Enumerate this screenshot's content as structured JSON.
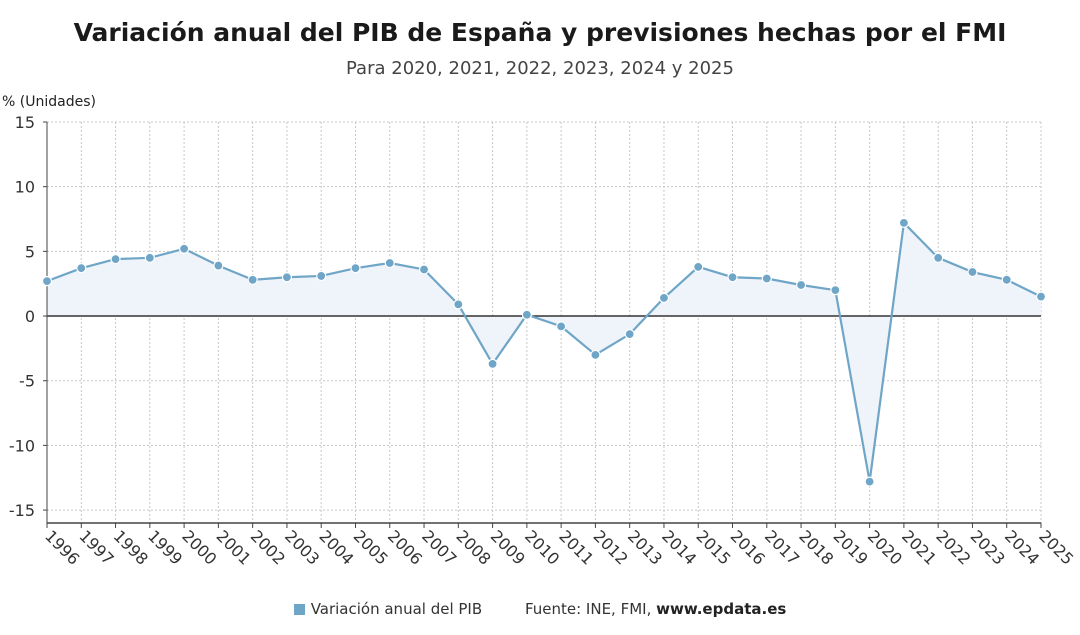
{
  "title": "Variación anual del PIB de España y previsiones hechas por el FMI",
  "subtitle": "Para 2020, 2021, 2022, 2023, 2024 y 2025",
  "footer": {
    "legend_label": "Variación anual del PIB",
    "source_prefix": "Fuente: INE, FMI,",
    "source_site": "www.epdata.es"
  },
  "colors": {
    "line": "#6fa5c7",
    "area": "#eef4fa",
    "grid": "#c8c8c8",
    "zero_line": "#333333"
  },
  "chart_data": {
    "type": "line",
    "title": "Variación anual del PIB de España y previsiones hechas por el FMI",
    "subtitle": "Para 2020, 2021, 2022, 2023, 2024 y 2025",
    "ylabel": "% (Unidades)",
    "xlabel": "",
    "ylim": [
      -16,
      15
    ],
    "yticks": [
      15,
      10,
      5,
      0,
      -5,
      -10,
      -15
    ],
    "ytick_labels": [
      "15",
      "10",
      "5",
      "0",
      "-5",
      "-10",
      "-15"
    ],
    "grid": true,
    "legend": "bottom",
    "categories": [
      "1996",
      "1997",
      "1998",
      "1999",
      "2000",
      "2001",
      "2002",
      "2003",
      "2004",
      "2005",
      "2006",
      "2007",
      "2008",
      "2009",
      "2010",
      "2011",
      "2012",
      "2013",
      "2014",
      "2015",
      "2016",
      "2017",
      "2018",
      "2019",
      "2020",
      "2021",
      "2022",
      "2023",
      "2024",
      "2025"
    ],
    "series": [
      {
        "name": "Variación anual del PIB",
        "values": [
          2.7,
          3.7,
          4.4,
          4.5,
          5.2,
          3.9,
          2.8,
          3.0,
          3.1,
          3.7,
          4.1,
          3.6,
          0.9,
          -3.7,
          0.1,
          -0.8,
          -3.0,
          -1.4,
          1.4,
          3.8,
          3.0,
          2.9,
          2.4,
          2.0,
          -12.8,
          7.2,
          4.5,
          3.4,
          2.8,
          1.5
        ]
      }
    ]
  }
}
